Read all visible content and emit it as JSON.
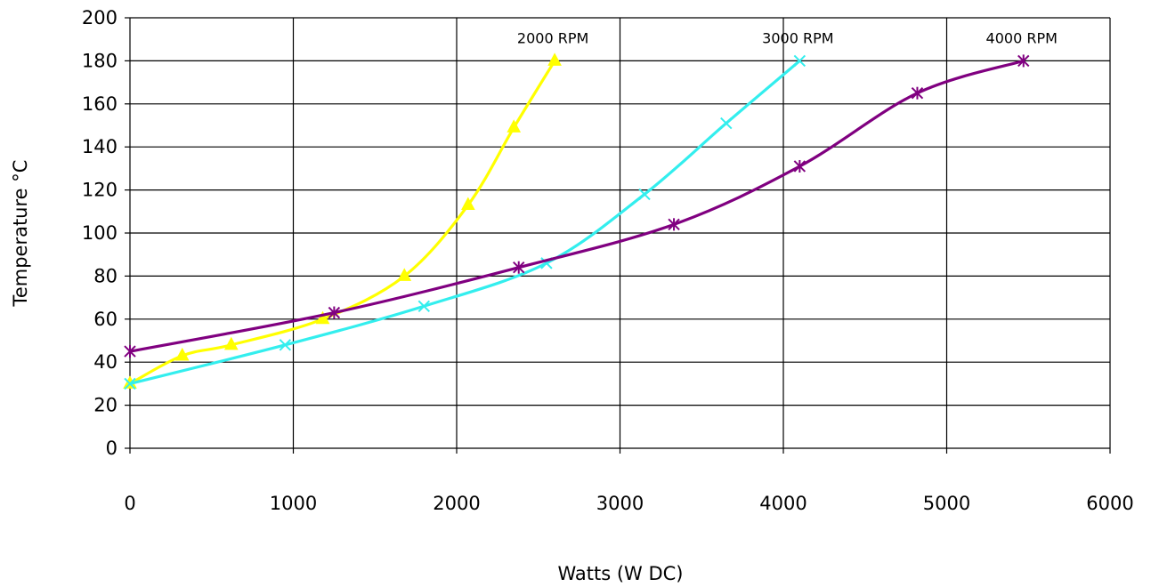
{
  "chart_data": {
    "type": "line",
    "xlabel": "Watts (W DC)",
    "ylabel": "Temperature °C",
    "xlim": [
      0,
      6000
    ],
    "ylim": [
      0,
      200
    ],
    "x_ticks": [
      "0",
      "1000",
      "2000",
      "3000",
      "4000",
      "5000",
      "6000"
    ],
    "y_ticks": [
      "0",
      "20",
      "40",
      "60",
      "80",
      "100",
      "120",
      "140",
      "160",
      "180",
      "200"
    ],
    "grid": true,
    "series": [
      {
        "name": "2000 RPM",
        "color": "#ffff00",
        "marker": "triangle",
        "points": [
          [
            0,
            30
          ],
          [
            320,
            43
          ],
          [
            620,
            48
          ],
          [
            1180,
            60
          ],
          [
            1680,
            80
          ],
          [
            2070,
            113
          ],
          [
            2350,
            149
          ],
          [
            2600,
            180
          ]
        ]
      },
      {
        "name": "3000 RPM",
        "color": "#33eeee",
        "marker": "x",
        "points": [
          [
            0,
            30
          ],
          [
            950,
            48
          ],
          [
            1800,
            66
          ],
          [
            2550,
            86
          ],
          [
            3150,
            118
          ],
          [
            3650,
            151
          ],
          [
            4100,
            180
          ]
        ]
      },
      {
        "name": "4000 RPM",
        "color": "#800080",
        "marker": "star",
        "points": [
          [
            0,
            45
          ],
          [
            1250,
            63
          ],
          [
            2380,
            84
          ],
          [
            3330,
            104
          ],
          [
            4100,
            131
          ],
          [
            4820,
            165
          ],
          [
            5470,
            180
          ]
        ]
      }
    ]
  }
}
